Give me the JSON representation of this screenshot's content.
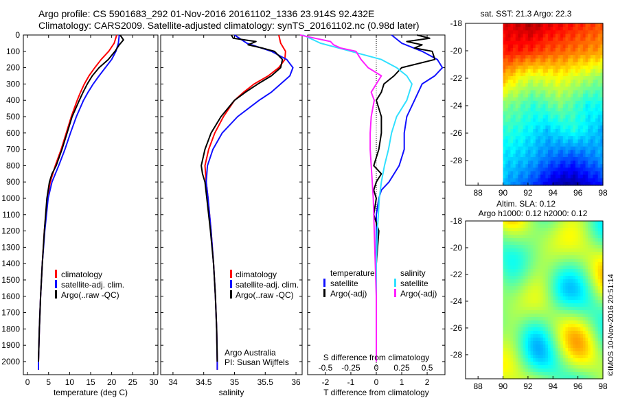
{
  "header": {
    "line1": "Argo profile: CS 5901683_292 01-Nov-2016 20161102_1336 23.914S 92.432E",
    "line2": "Climatology: CARS2009. Satellite-adjusted climatology: synTS_20161102.nc (0.98d later)"
  },
  "colors": {
    "climatology": "#ff0000",
    "satellite": "#1010ff",
    "argo": "#000000",
    "sal_satellite": "#30e0ff",
    "sal_argo": "#ff20ff"
  },
  "depth_axis": {
    "ticks": [
      "0",
      "100",
      "200",
      "300",
      "400",
      "500",
      "600",
      "700",
      "800",
      "900",
      "1000",
      "1100",
      "1200",
      "1300",
      "1400",
      "1500",
      "1600",
      "1700",
      "1800",
      "1900",
      "2000"
    ]
  },
  "panels": {
    "temperature": {
      "xlabel": "temperature (deg C)",
      "xticks": [
        "0",
        "5",
        "10",
        "15",
        "20",
        "25",
        "30"
      ],
      "legend": [
        "climatology",
        "satellite-adj. clim.",
        "Argo(..raw -QC)"
      ]
    },
    "salinity": {
      "xlabel": "salinity",
      "xticks": [
        "34",
        "34.5",
        "35",
        "35.5",
        "36"
      ],
      "legend": [
        "climatology",
        "satellite-adj. clim.",
        "Argo(..raw -QC)"
      ],
      "note1": "Argo Australia",
      "note2": "PI: Susan Wijffels"
    },
    "difference": {
      "xlabel": "T difference from climatology",
      "top_label": "S difference from climatology",
      "s_ticks": [
        "-0.5",
        "-0.25",
        "0",
        "0.25",
        "0.5"
      ],
      "t_ticks": [
        "-2",
        "-1",
        "0",
        "1",
        "2"
      ],
      "legend_temp_title": "temperature",
      "legend_sal_title": "salinity",
      "legend_temp": [
        "satellite",
        "Argo(-adj)"
      ],
      "legend_sal": [
        "satellite",
        "Argo(-adj)"
      ]
    },
    "sst_map": {
      "title": "sat. SST: 21.3 Argo: 22.3",
      "xticks": [
        "88",
        "90",
        "92",
        "94",
        "96",
        "98"
      ],
      "yticks": [
        "-18",
        "-20",
        "-22",
        "-24",
        "-26",
        "-28"
      ]
    },
    "sla_map": {
      "title1": "Altim. SLA: 0.12",
      "title2": "Argo h1000: 0.12 h2000: 0.12",
      "xticks": [
        "88",
        "90",
        "92",
        "94",
        "96",
        "98"
      ],
      "yticks": [
        "-18",
        "-20",
        "-22",
        "-24",
        "-26",
        "-28"
      ]
    }
  },
  "credit": "©IMOS 10-Nov-2016 20:51:14",
  "chart_data": [
    {
      "type": "line",
      "xlabel": "temperature (deg C)",
      "ylabel": "",
      "xlim": [
        -1,
        31
      ],
      "ylim": [
        2080,
        0
      ],
      "series": [
        {
          "name": "climatology",
          "depth": [
            0,
            50,
            100,
            150,
            200,
            250,
            300,
            350,
            400,
            500,
            600,
            700,
            800,
            900,
            1000,
            1200,
            1400,
            1600,
            1800,
            2000,
            2050
          ],
          "values": [
            21.2,
            20.6,
            19.3,
            17.5,
            16.0,
            14.6,
            13.5,
            12.6,
            11.8,
            10.4,
            9.2,
            8.0,
            6.6,
            5.4,
            4.7,
            4.0,
            3.5,
            3.1,
            2.8,
            2.6,
            2.6
          ]
        },
        {
          "name": "satellite-adj. clim.",
          "depth": [
            0,
            50,
            100,
            150,
            200,
            250,
            300,
            350,
            400,
            500,
            600,
            700,
            800,
            900,
            1000,
            1200,
            1400,
            1600,
            1800,
            2000,
            2050
          ],
          "values": [
            21.8,
            21.6,
            21.0,
            20.0,
            18.5,
            17.0,
            15.6,
            14.4,
            13.3,
            11.6,
            10.2,
            8.9,
            7.4,
            5.8,
            4.9,
            4.1,
            3.5,
            3.1,
            2.8,
            2.6,
            2.6
          ]
        },
        {
          "name": "Argo(..raw -QC)",
          "depth": [
            0,
            30,
            60,
            100,
            150,
            200,
            250,
            300,
            350,
            400,
            500,
            600,
            700,
            800,
            850,
            900,
            1000,
            1200,
            1400,
            1600,
            1800,
            2000
          ],
          "values": [
            22.0,
            22.8,
            21.8,
            20.8,
            19.2,
            17.0,
            15.4,
            14.2,
            13.2,
            12.3,
            10.6,
            9.4,
            8.2,
            6.8,
            5.8,
            5.2,
            4.6,
            4.0,
            3.5,
            3.1,
            2.8,
            2.6
          ]
        }
      ]
    },
    {
      "type": "line",
      "xlabel": "salinity",
      "ylabel": "",
      "xlim": [
        33.8,
        36.1
      ],
      "ylim": [
        2080,
        0
      ],
      "series": [
        {
          "name": "climatology",
          "depth": [
            0,
            50,
            100,
            150,
            200,
            250,
            300,
            350,
            400,
            500,
            600,
            700,
            800,
            900,
            1000,
            1200,
            1400,
            1600,
            1800,
            2000,
            2050
          ],
          "values": [
            35.72,
            35.75,
            35.83,
            35.82,
            35.72,
            35.55,
            35.32,
            35.15,
            35.0,
            34.82,
            34.68,
            34.58,
            34.52,
            34.54,
            34.57,
            34.62,
            34.66,
            34.69,
            34.71,
            34.72,
            34.72
          ]
        },
        {
          "name": "satellite-adj. clim.",
          "depth": [
            0,
            50,
            100,
            150,
            200,
            250,
            300,
            350,
            400,
            500,
            600,
            700,
            800,
            900,
            1000,
            1200,
            1400,
            1600,
            1800,
            2000,
            2050
          ],
          "values": [
            35.0,
            35.2,
            35.6,
            35.85,
            35.95,
            35.9,
            35.75,
            35.6,
            35.4,
            35.05,
            34.8,
            34.65,
            34.56,
            34.54,
            34.57,
            34.62,
            34.66,
            34.69,
            34.71,
            34.72,
            34.72
          ]
        },
        {
          "name": "Argo(..raw -QC)",
          "depth": [
            0,
            20,
            40,
            60,
            80,
            100,
            150,
            200,
            250,
            300,
            350,
            400,
            500,
            600,
            700,
            800,
            850,
            900,
            1000,
            1200,
            1400,
            1600,
            1800,
            2000
          ],
          "values": [
            34.95,
            34.98,
            35.35,
            35.22,
            35.45,
            35.65,
            35.78,
            35.75,
            35.6,
            35.38,
            35.18,
            35.0,
            34.78,
            34.62,
            34.52,
            34.46,
            34.48,
            34.52,
            34.55,
            34.61,
            34.66,
            34.69,
            34.71,
            34.72
          ]
        }
      ]
    },
    {
      "type": "line",
      "xlabel": "T difference from climatology",
      "ylabel": "",
      "xlim": [
        -2.7,
        2.7
      ],
      "ylim": [
        2080,
        0
      ],
      "series": [
        {
          "name": "temperature satellite",
          "depth": [
            0,
            50,
            100,
            150,
            200,
            250,
            300,
            400,
            500,
            600,
            700,
            800,
            900,
            950,
            1000,
            1100,
            1200,
            1400,
            1600,
            1800,
            2000
          ],
          "values": [
            0.6,
            1.0,
            1.8,
            2.4,
            2.6,
            2.3,
            1.8,
            1.5,
            1.2,
            1.1,
            1.1,
            0.9,
            0.5,
            0.2,
            0.1,
            0.0,
            0.0,
            0.0,
            0.0,
            0.0,
            0.0
          ]
        },
        {
          "name": "temperature Argo(-adj)",
          "depth": [
            0,
            20,
            40,
            60,
            80,
            100,
            150,
            200,
            250,
            300,
            350,
            400,
            500,
            600,
            700,
            800,
            850,
            900,
            950,
            1000,
            1100,
            1200,
            1400,
            1600,
            1800,
            2000
          ],
          "values": [
            1.6,
            2.1,
            1.2,
            1.8,
            1.5,
            2.2,
            2.3,
            1.0,
            0.7,
            0.3,
            0.2,
            0.0,
            0.2,
            0.2,
            0.1,
            -0.1,
            0.2,
            0.0,
            -0.1,
            0.0,
            -0.1,
            0.1,
            0.0,
            0.0,
            0.0,
            0.0
          ]
        },
        {
          "name": "salinity satellite",
          "depth": [
            0,
            50,
            100,
            150,
            200,
            250,
            300,
            400,
            500,
            600,
            700,
            800,
            900,
            1000,
            1200,
            1400,
            1600,
            1800,
            2000
          ],
          "values": [
            -0.72,
            -0.55,
            -0.25,
            0.05,
            0.2,
            0.3,
            0.35,
            0.3,
            0.2,
            0.15,
            0.12,
            0.08,
            0.05,
            0.03,
            0.01,
            0.0,
            0.0,
            0.0,
            0.0
          ]
        },
        {
          "name": "salinity Argo(-adj)",
          "depth": [
            0,
            20,
            40,
            60,
            80,
            100,
            150,
            200,
            250,
            300,
            350,
            400,
            500,
            600,
            700,
            800,
            900,
            1000,
            1200,
            1400,
            1600,
            1800,
            2000
          ],
          "values": [
            -0.75,
            -0.6,
            -0.45,
            -0.42,
            -0.35,
            -0.2,
            -0.15,
            -0.08,
            0.05,
            0.0,
            -0.05,
            -0.02,
            -0.05,
            -0.06,
            -0.06,
            -0.05,
            -0.04,
            -0.03,
            -0.02,
            -0.01,
            0.0,
            0.0,
            0.0
          ]
        }
      ]
    },
    {
      "type": "heatmap",
      "title": "sat. SST: 21.3 Argo: 22.3",
      "xlim": [
        87,
        98
      ],
      "ylim": [
        -29.8,
        -18
      ],
      "data_xlim": [
        90,
        98
      ],
      "description_of_field": [
        [
          0.9,
          0.92,
          0.95,
          0.9,
          0.88,
          0.85,
          0.82,
          0.8
        ],
        [
          0.86,
          0.85,
          0.83,
          0.8,
          0.78,
          0.76,
          0.74,
          0.72
        ],
        [
          0.7,
          0.62,
          0.58,
          0.6,
          0.62,
          0.58,
          0.55,
          0.5
        ],
        [
          0.5,
          0.48,
          0.42,
          0.45,
          0.5,
          0.45,
          0.38,
          0.4
        ],
        [
          0.42,
          0.4,
          0.36,
          0.32,
          0.36,
          0.4,
          0.35,
          0.3
        ],
        [
          0.35,
          0.33,
          0.3,
          0.25,
          0.22,
          0.2,
          0.24,
          0.28
        ],
        [
          0.3,
          0.25,
          0.2,
          0.12,
          0.05,
          0.04,
          0.1,
          0.15
        ]
      ]
    },
    {
      "type": "heatmap",
      "title": "Altim. SLA: 0.12",
      "xlim": [
        87,
        98
      ],
      "ylim": [
        -29.8,
        -18
      ],
      "data_xlim": [
        90,
        98
      ]
    }
  ]
}
